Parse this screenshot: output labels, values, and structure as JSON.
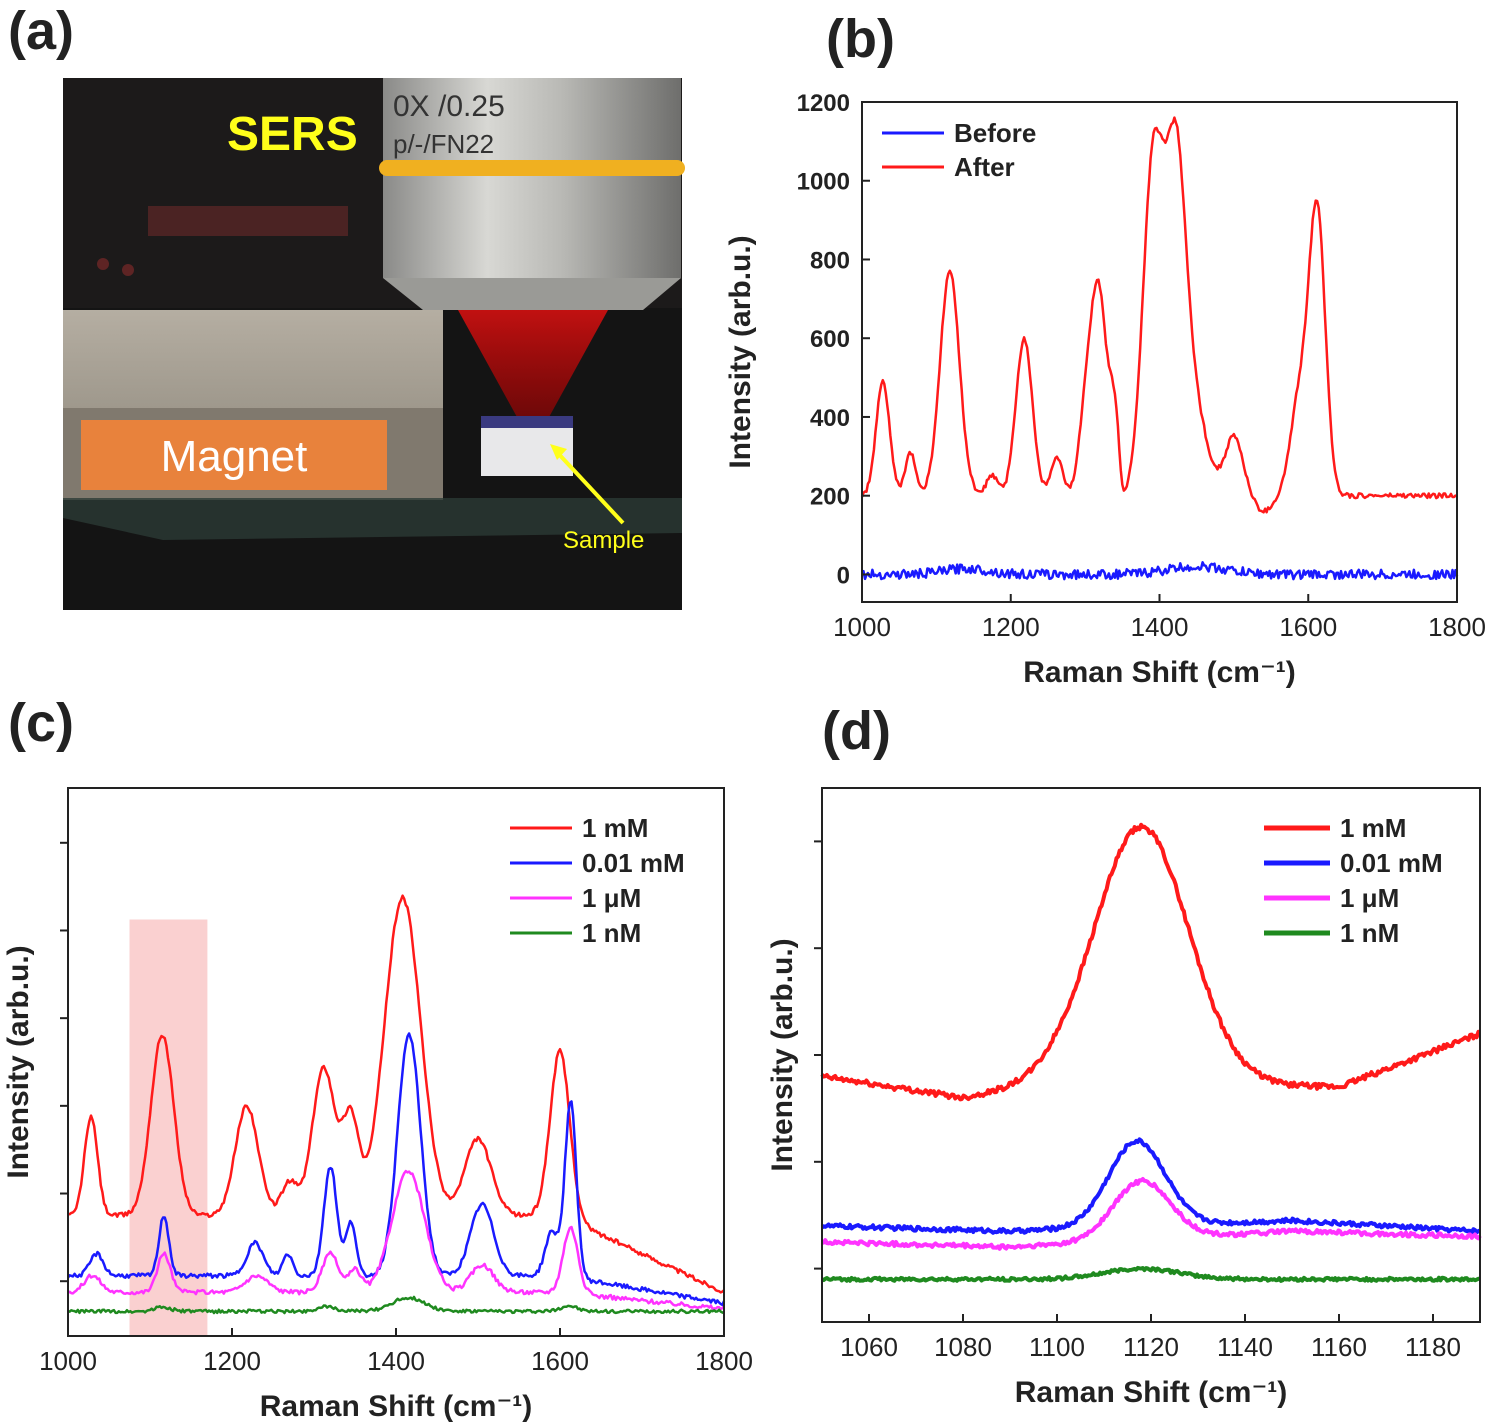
{
  "panels": {
    "a": {
      "label": "(a)",
      "photo_labels": {
        "sers": "SERS",
        "magnet": "Magnet",
        "sample": "Sample",
        "lens_line1": "0X /0.25",
        "lens_line2": "p/-/FN22"
      }
    },
    "b": {
      "label": "(b)"
    },
    "c": {
      "label": "(c)"
    },
    "d": {
      "label": "(d)"
    }
  },
  "colors": {
    "red": "#ff1a1a",
    "blue": "#1a1aff",
    "magenta": "#ff33ff",
    "green": "#1f8a1f",
    "highlight": "#f7b7b7",
    "sers_text": "#ffff1a",
    "magnet_box": "#e8823c"
  },
  "chart_data": [
    {
      "id": "b",
      "type": "line",
      "xlabel": "Raman Shift (cm⁻¹)",
      "ylabel": "Intensity (arb.u.)",
      "xlim": [
        1000,
        1800
      ],
      "ylim": [
        -70,
        1200
      ],
      "xticks": [
        1000,
        1200,
        1400,
        1600,
        1800
      ],
      "yticks": [
        0,
        200,
        400,
        600,
        800,
        1000,
        1200
      ],
      "legend_position": "top-left",
      "series": [
        {
          "name": "Before",
          "color": "#1a1aff",
          "baseline": 0,
          "peaks": [
            [
              1140,
              15,
              30
            ],
            [
              1450,
              20,
              40
            ]
          ],
          "noise": 12
        },
        {
          "name": "After",
          "color": "#ff1a1a",
          "baseline": 200,
          "peaks": [
            [
              1028,
              290,
              9
            ],
            [
              1065,
              110,
              7
            ],
            [
              1118,
              570,
              13
            ],
            [
              1175,
              50,
              8
            ],
            [
              1218,
              400,
              11
            ],
            [
              1262,
              95,
              8
            ],
            [
              1300,
              170,
              9
            ],
            [
              1318,
              520,
              11
            ],
            [
              1340,
              190,
              7
            ],
            [
              1392,
              860,
              14
            ],
            [
              1422,
              760,
              13
            ],
            [
              1445,
              230,
              18
            ],
            [
              1500,
              150,
              12
            ],
            [
              1588,
              240,
              12
            ],
            [
              1612,
              720,
              11
            ]
          ],
          "dips": [
            [
              1350,
              60,
              4
            ],
            [
              1540,
              40,
              12
            ]
          ],
          "noise": 6
        }
      ]
    },
    {
      "id": "c",
      "type": "line",
      "xlabel": "Raman Shift (cm⁻¹)",
      "ylabel": "Intensity (arb.u.)",
      "xlim": [
        1000,
        1800
      ],
      "ylim": [
        0,
        1
      ],
      "xticks": [
        1000,
        1200,
        1400,
        1600,
        1800
      ],
      "yticks_unlabeled": 6,
      "highlight_x": [
        1075,
        1170
      ],
      "legend_position": "top-right",
      "series": [
        {
          "name": "1 mM",
          "color": "#ff1a1a",
          "baseline": 0.22,
          "tail": 0.08,
          "peaks": [
            [
              1028,
              0.18,
              8
            ],
            [
              1115,
              0.33,
              14
            ],
            [
              1218,
              0.2,
              14
            ],
            [
              1270,
              0.06,
              10
            ],
            [
              1312,
              0.27,
              14
            ],
            [
              1345,
              0.17,
              10
            ],
            [
              1408,
              0.58,
              22
            ],
            [
              1500,
              0.14,
              16
            ],
            [
              1600,
              0.3,
              12
            ]
          ],
          "noise": 0.004
        },
        {
          "name": "0.01 mM",
          "color": "#1a1aff",
          "baseline": 0.11,
          "tail": 0.06,
          "peaks": [
            [
              1035,
              0.04,
              8
            ],
            [
              1117,
              0.11,
              6
            ],
            [
              1228,
              0.06,
              10
            ],
            [
              1268,
              0.04,
              6
            ],
            [
              1320,
              0.2,
              8
            ],
            [
              1345,
              0.1,
              6
            ],
            [
              1416,
              0.44,
              14
            ],
            [
              1505,
              0.13,
              14
            ],
            [
              1590,
              0.08,
              8
            ],
            [
              1613,
              0.32,
              7
            ]
          ],
          "noise": 0.004
        },
        {
          "name": "1 μM",
          "color": "#ff33ff",
          "baseline": 0.08,
          "tail": 0.05,
          "peaks": [
            [
              1030,
              0.03,
              10
            ],
            [
              1117,
              0.07,
              8
            ],
            [
              1230,
              0.03,
              14
            ],
            [
              1320,
              0.07,
              10
            ],
            [
              1350,
              0.04,
              8
            ],
            [
              1415,
              0.22,
              20
            ],
            [
              1505,
              0.05,
              14
            ],
            [
              1613,
              0.12,
              9
            ]
          ],
          "noise": 0.004
        },
        {
          "name": "1 nM",
          "color": "#1f8a1f",
          "baseline": 0.045,
          "tail": 0.045,
          "peaks": [
            [
              1115,
              0.008,
              10
            ],
            [
              1315,
              0.008,
              12
            ],
            [
              1415,
              0.025,
              20
            ],
            [
              1610,
              0.01,
              10
            ]
          ],
          "noise": 0.003
        }
      ]
    },
    {
      "id": "d",
      "type": "line",
      "xlabel": "Raman Shift (cm⁻¹)",
      "ylabel": "Intensity (arb.u.)",
      "xlim": [
        1050,
        1190
      ],
      "ylim": [
        0,
        1
      ],
      "xticks": [
        1060,
        1080,
        1100,
        1120,
        1140,
        1160,
        1180
      ],
      "yticks_unlabeled": 5,
      "legend_position": "top-right",
      "series": [
        {
          "name": "1 mM",
          "color": "#ff1a1a",
          "baseline": 0.44,
          "slope": [
            [
              1050,
              0.46
            ],
            [
              1080,
              0.42
            ],
            [
              1100,
              0.45
            ],
            [
              1160,
              0.44
            ],
            [
              1190,
              0.54
            ]
          ],
          "peaks": [
            [
              1118,
              0.48,
              10
            ]
          ],
          "noise": 0.005
        },
        {
          "name": "0.01 mM",
          "color": "#1a1aff",
          "baseline": 0.17,
          "slope": [
            [
              1050,
              0.18
            ],
            [
              1090,
              0.17
            ],
            [
              1150,
              0.19
            ],
            [
              1190,
              0.17
            ]
          ],
          "peaks": [
            [
              1117,
              0.16,
              6
            ]
          ],
          "noise": 0.004
        },
        {
          "name": "1 μM",
          "color": "#ff33ff",
          "baseline": 0.15,
          "slope": [
            [
              1050,
              0.15
            ],
            [
              1090,
              0.14
            ],
            [
              1150,
              0.17
            ],
            [
              1190,
              0.16
            ]
          ],
          "peaks": [
            [
              1118,
              0.11,
              6
            ]
          ],
          "noise": 0.004
        },
        {
          "name": "1 nM",
          "color": "#1f8a1f",
          "baseline": 0.08,
          "slope": [
            [
              1050,
              0.08
            ],
            [
              1190,
              0.08
            ]
          ],
          "peaks": [
            [
              1118,
              0.02,
              8
            ]
          ],
          "noise": 0.003
        }
      ]
    }
  ]
}
